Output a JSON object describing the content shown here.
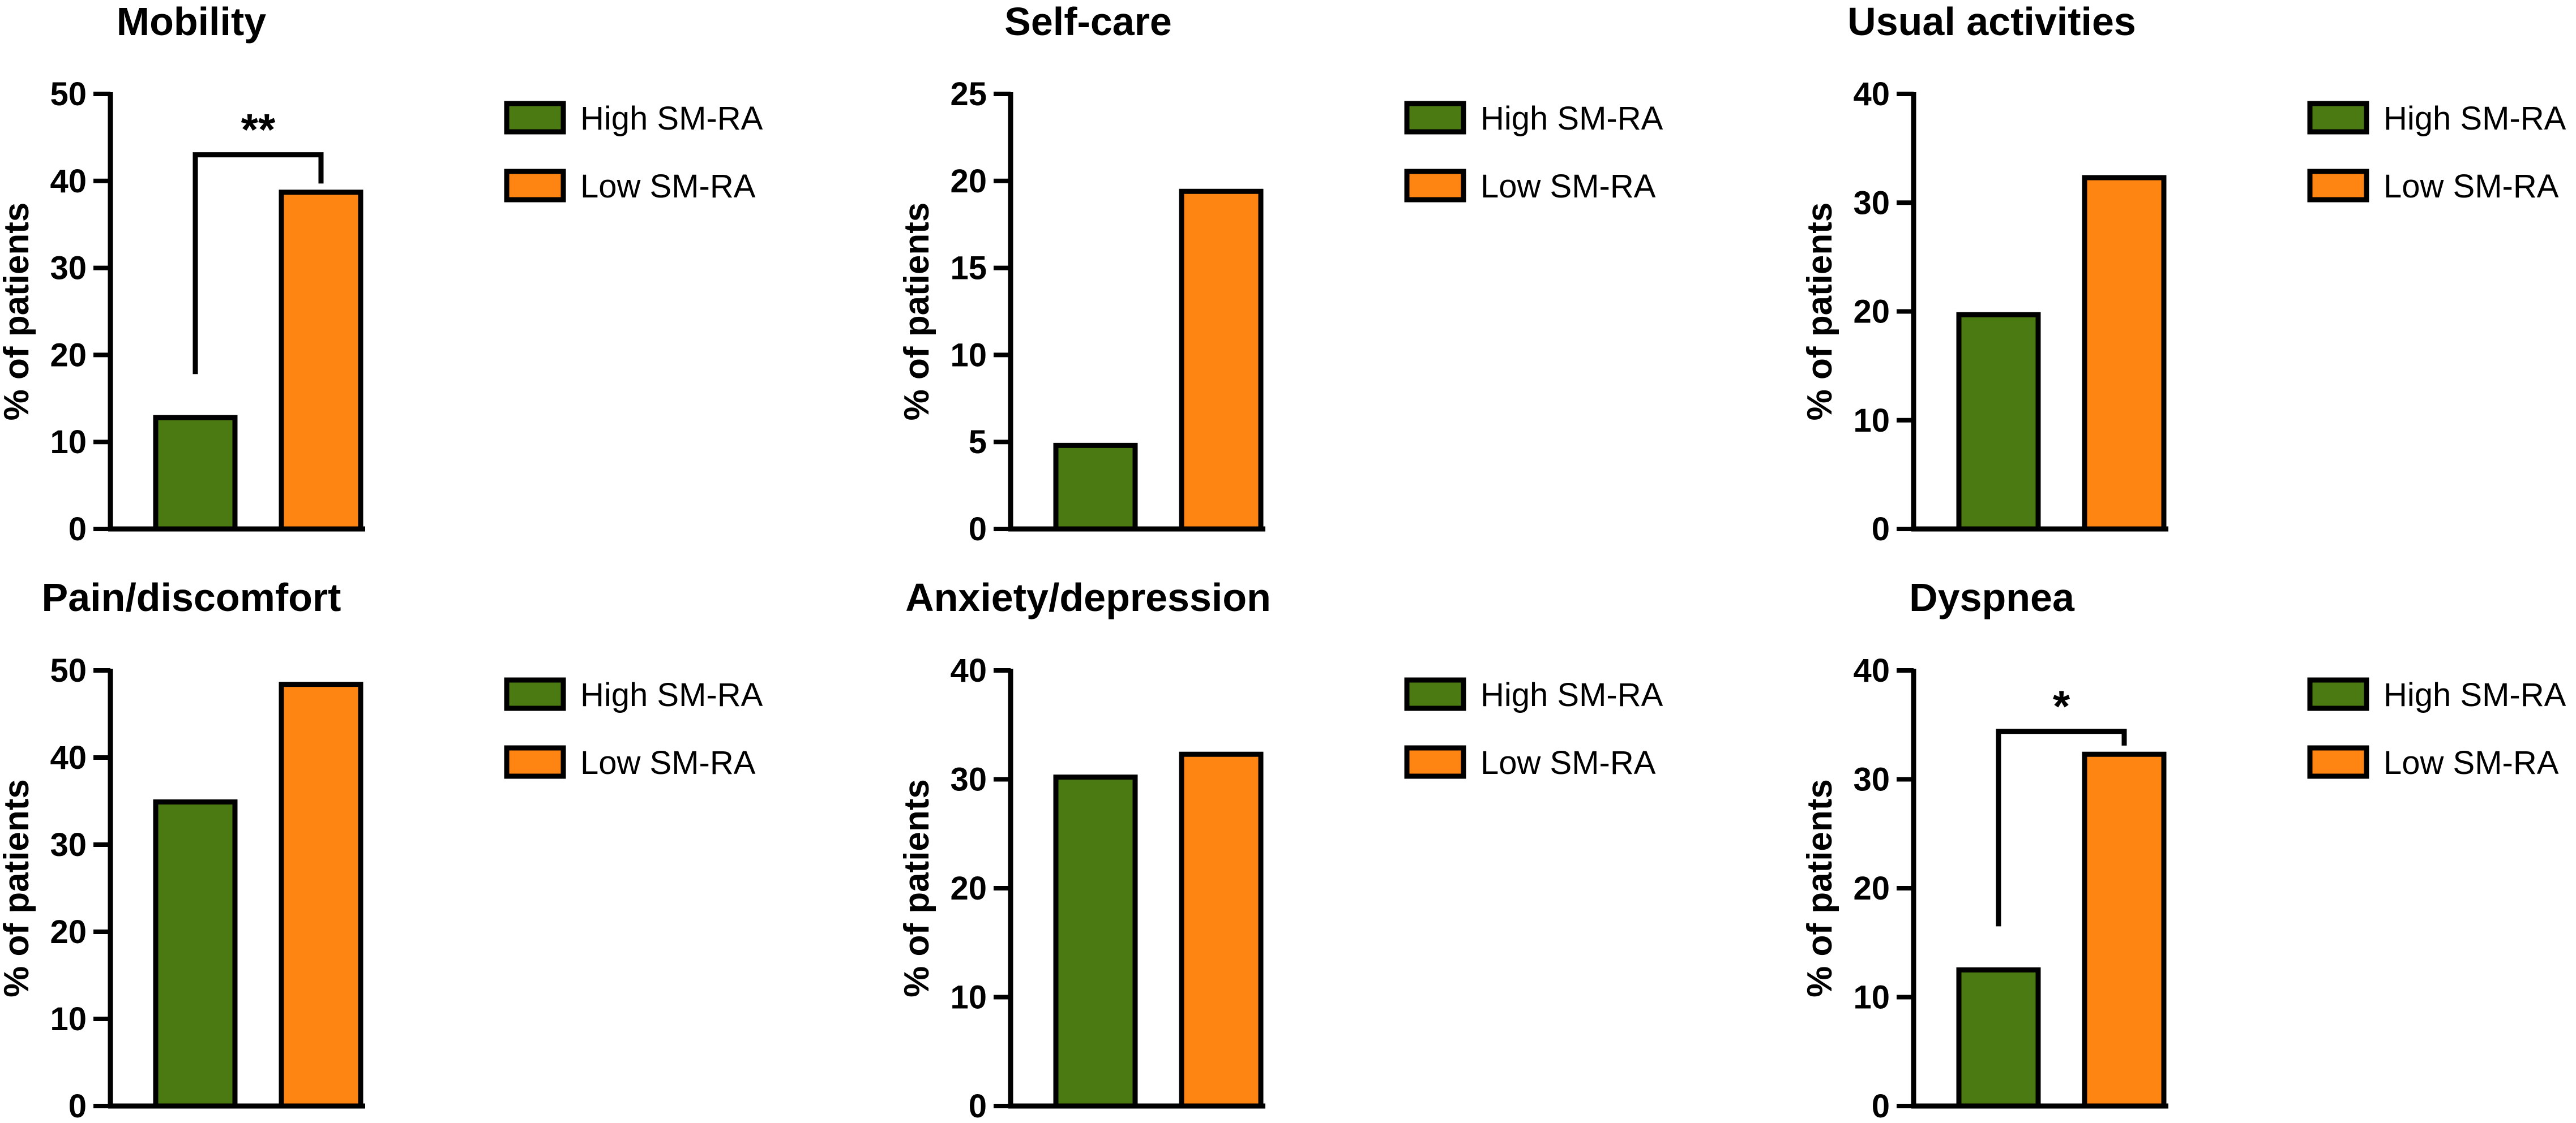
{
  "colors": {
    "high": "#4b7a12",
    "low": "#ff8512",
    "stroke": "#000000"
  },
  "chart_data": [
    {
      "type": "bar",
      "title": "Mobility",
      "categories": [
        "High SM-RA",
        "Low SM-RA"
      ],
      "values": [
        12.8,
        38.7
      ],
      "ylabel": "% of patients",
      "ylim": [
        0,
        50
      ],
      "yticks": [
        0,
        10,
        20,
        30,
        40,
        50
      ],
      "legend": [
        "High SM-RA",
        "Low SM-RA"
      ],
      "significance": {
        "label": "**",
        "between": [
          0,
          1
        ]
      }
    },
    {
      "type": "bar",
      "title": "Self-care",
      "categories": [
        "High SM-RA",
        "Low SM-RA"
      ],
      "values": [
        4.8,
        19.4
      ],
      "ylabel": "% of patients",
      "ylim": [
        0,
        25
      ],
      "yticks": [
        0,
        5,
        10,
        15,
        20,
        25
      ],
      "legend": [
        "High SM-RA",
        "Low SM-RA"
      ]
    },
    {
      "type": "bar",
      "title": "Usual activities",
      "categories": [
        "High SM-RA",
        "Low SM-RA"
      ],
      "values": [
        19.7,
        32.3
      ],
      "ylabel": "% of patients",
      "ylim": [
        0,
        40
      ],
      "yticks": [
        0,
        10,
        20,
        30,
        40
      ],
      "legend": [
        "High SM-RA",
        "Low SM-RA"
      ]
    },
    {
      "type": "bar",
      "title": "Pain/discomfort",
      "categories": [
        "High SM-RA",
        "Low SM-RA"
      ],
      "values": [
        34.9,
        48.4
      ],
      "ylabel": "% of patients",
      "ylim": [
        0,
        50
      ],
      "yticks": [
        0,
        10,
        20,
        30,
        40,
        50
      ],
      "legend": [
        "High SM-RA",
        "Low SM-RA"
      ]
    },
    {
      "type": "bar",
      "title": "Anxiety/depression",
      "categories": [
        "High SM-RA",
        "Low SM-RA"
      ],
      "values": [
        30.2,
        32.3
      ],
      "ylabel": "% of patients",
      "ylim": [
        0,
        40
      ],
      "yticks": [
        0,
        10,
        20,
        30,
        40
      ],
      "legend": [
        "High SM-RA",
        "Low SM-RA"
      ]
    },
    {
      "type": "bar",
      "title": "Dyspnea",
      "categories": [
        "High SM-RA",
        "Low SM-RA"
      ],
      "values": [
        12.5,
        32.3
      ],
      "ylabel": "% of patients",
      "ylim": [
        0,
        40
      ],
      "yticks": [
        0,
        10,
        20,
        30,
        40
      ],
      "legend": [
        "High SM-RA",
        "Low SM-RA"
      ],
      "significance": {
        "label": "*",
        "between": [
          0,
          1
        ]
      }
    }
  ]
}
